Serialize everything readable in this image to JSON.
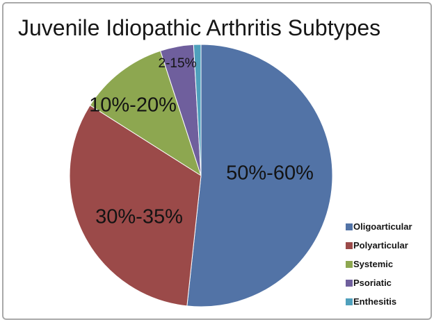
{
  "title": "Juvenile Idiopathic Arthritis Subtypes",
  "frame": {
    "border_color": "#a9a9a9",
    "background": "#ffffff"
  },
  "chart_data": {
    "type": "pie",
    "title": "Juvenile Idiopathic Arthritis Subtypes",
    "direction": "clockwise",
    "start_angle_deg": 0,
    "legend_position": "right-bottom",
    "slices": [
      {
        "label": "Oligoarticular",
        "data_label": "50%-60%",
        "share_pct": 51.7,
        "color": "#5273a6"
      },
      {
        "label": "Polyarticular",
        "data_label": "30%-35%",
        "share_pct": 32.3,
        "color": "#9b4a49"
      },
      {
        "label": "Systemic",
        "data_label": "10%-20%",
        "share_pct": 11.0,
        "color": "#8da750"
      },
      {
        "label": "Psoriatic",
        "data_label": "2-15%",
        "share_pct": 4.1,
        "color": "#6f5f9d"
      },
      {
        "label": "Enthesitis",
        "share_pct": 0.9,
        "color": "#4fa0bc"
      }
    ]
  }
}
